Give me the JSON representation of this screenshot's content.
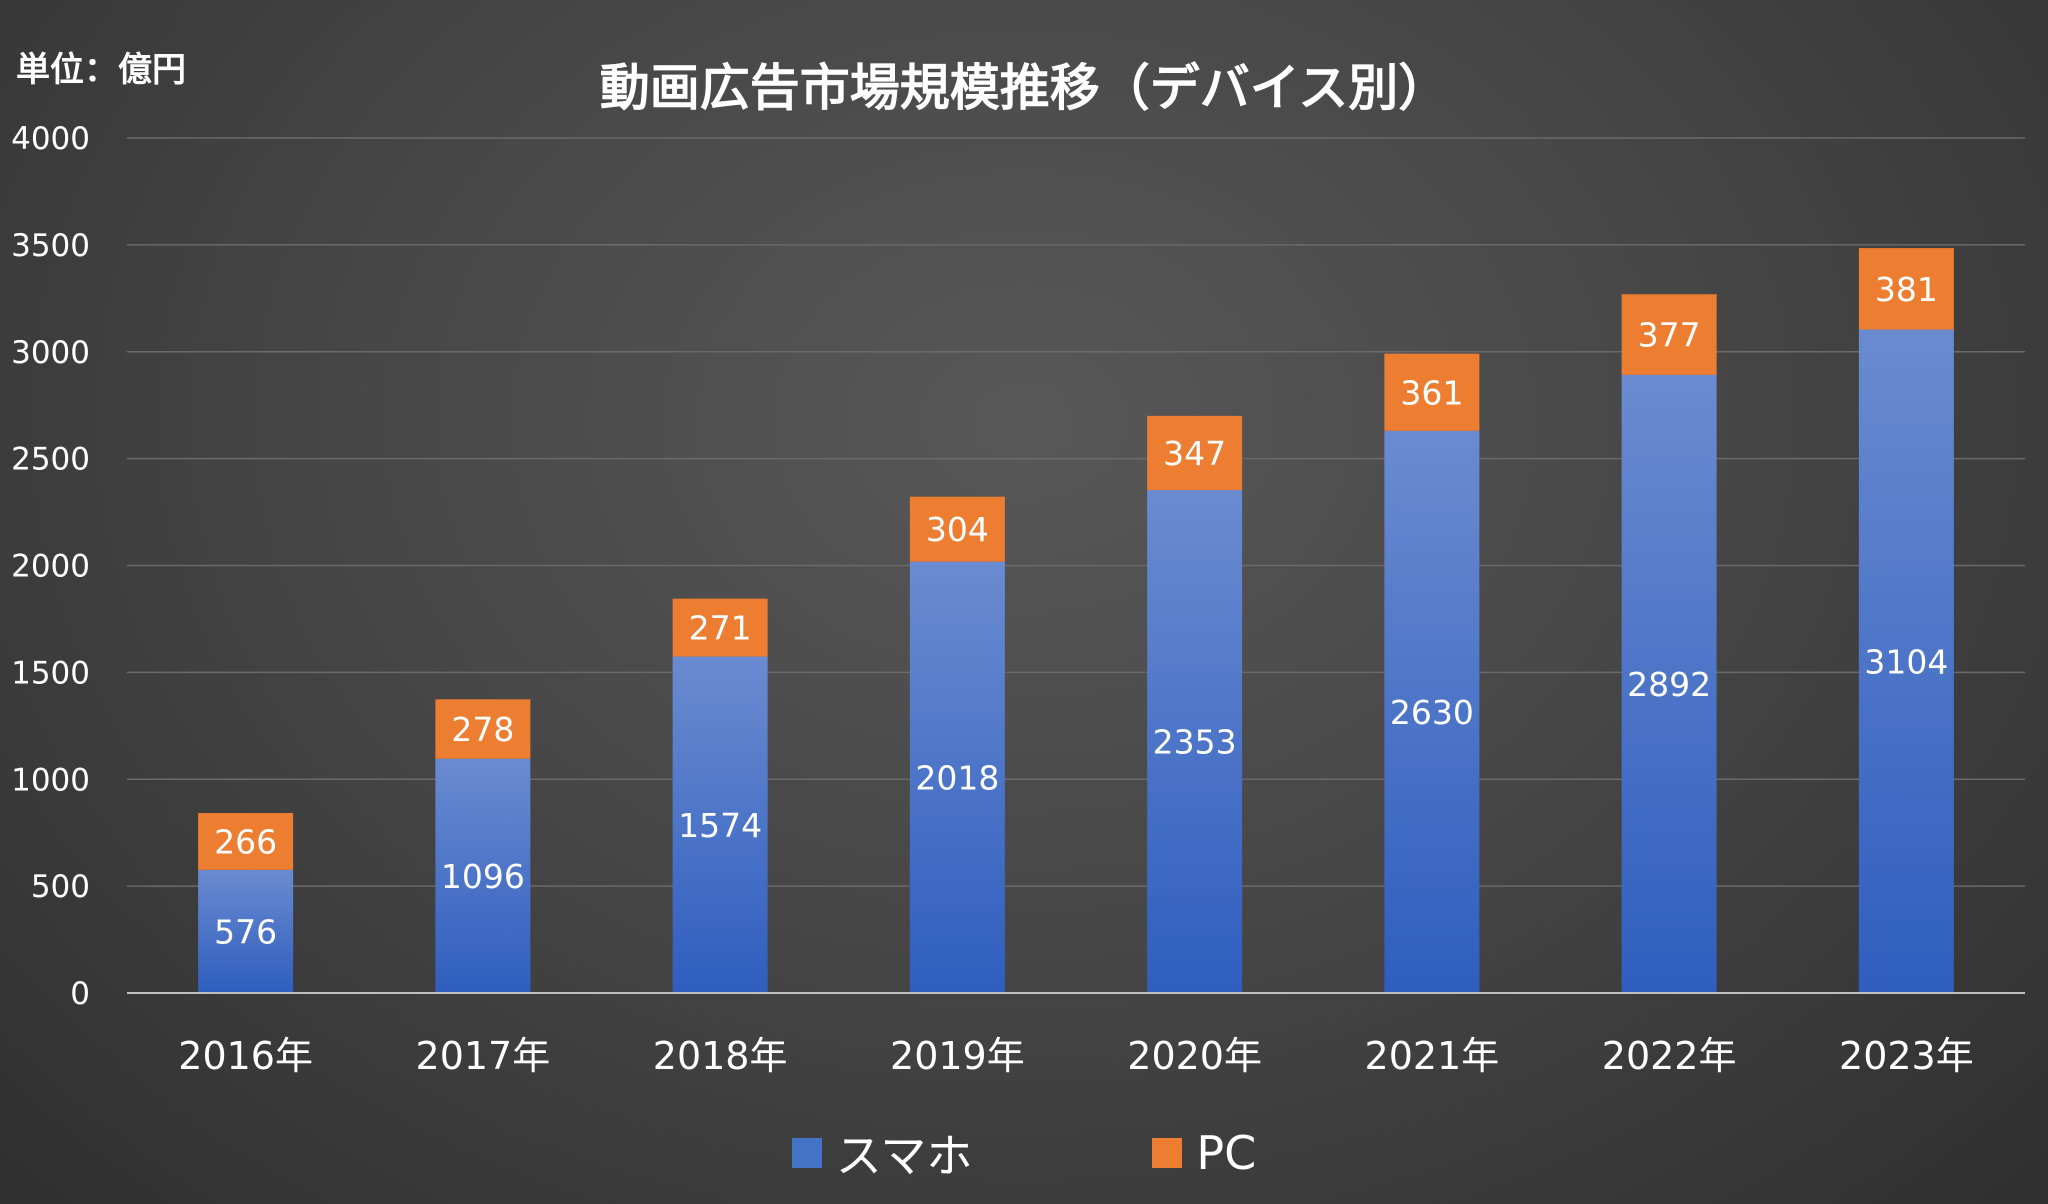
{
  "chart_data": {
    "type": "bar",
    "stacked": true,
    "title": "動画広告市場規模推移（デバイス別）",
    "unit_label": "単位：億円",
    "categories": [
      "2016年",
      "2017年",
      "2018年",
      "2019年",
      "2020年",
      "2021年",
      "2022年",
      "2023年"
    ],
    "series": [
      {
        "name": "スマホ",
        "color": "#4472c4",
        "values": [
          576,
          1096,
          1574,
          2018,
          2353,
          2630,
          2892,
          3104
        ]
      },
      {
        "name": "PC",
        "color": "#ed7d31",
        "values": [
          266,
          278,
          271,
          304,
          347,
          361,
          377,
          381
        ]
      }
    ],
    "ylim": [
      0,
      4000
    ],
    "yticks": [
      "0",
      "500",
      "1000",
      "1500",
      "2000",
      "2500",
      "3000",
      "3500",
      "4000"
    ],
    "grid": true,
    "legend_position": "bottom",
    "data_labels": true
  }
}
